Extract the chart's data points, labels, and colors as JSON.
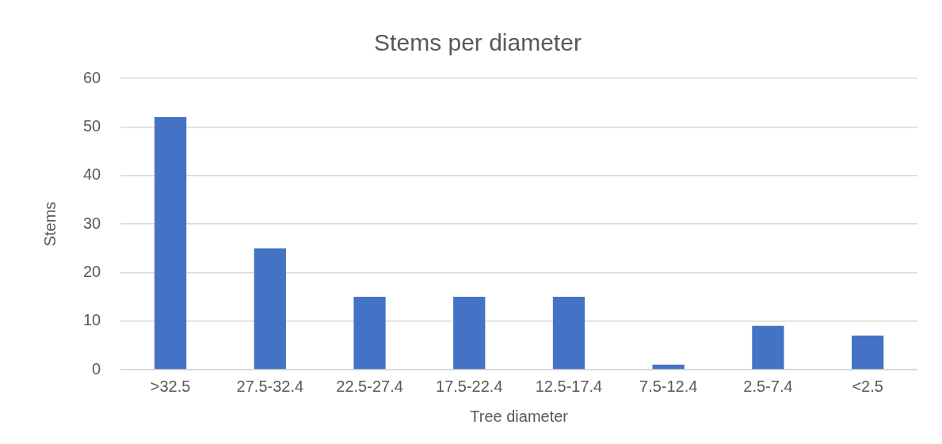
{
  "chart_data": {
    "type": "bar",
    "title": "Stems per diameter",
    "xlabel": "Tree diameter",
    "ylabel": "Stems",
    "categories": [
      ">32.5",
      "27.5-32.4",
      "22.5-27.4",
      "17.5-22.4",
      "12.5-17.4",
      "7.5-12.4",
      "2.5-7.4",
      "<2.5"
    ],
    "values": [
      52,
      25,
      15,
      15,
      15,
      1,
      9,
      7
    ],
    "color": "#4472c4",
    "ylim": [
      0,
      60
    ],
    "yticks": [
      0,
      10,
      20,
      30,
      40,
      50,
      60
    ],
    "grid": "y",
    "legend": false
  }
}
